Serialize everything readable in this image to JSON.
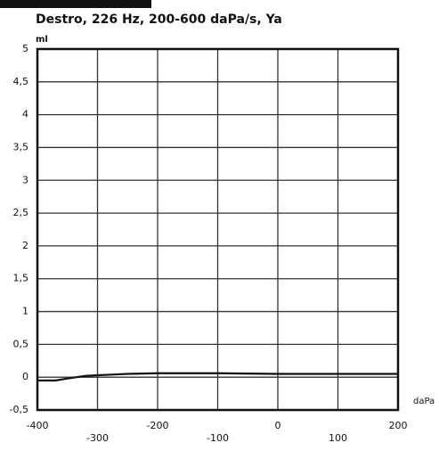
{
  "chart_data": {
    "type": "line",
    "title": "Destro, 226 Hz, 200-600 daPa/s, Ya",
    "y_label": "ml",
    "x_label": "daPa",
    "x": [
      -400,
      -370,
      -350,
      -320,
      -300,
      -250,
      -200,
      -100,
      0,
      100,
      200
    ],
    "series": [
      {
        "name": null,
        "color": "#111111",
        "values": [
          -0.05,
          -0.05,
          -0.02,
          0.02,
          0.03,
          0.05,
          0.06,
          0.06,
          0.05,
          0.05,
          0.05
        ]
      }
    ],
    "xlim": [
      -400,
      200
    ],
    "xticks": [
      -400,
      -300,
      -200,
      -100,
      0,
      100,
      200
    ],
    "ylim": [
      -0.5,
      5
    ],
    "yticks": [
      {
        "value": -0.5,
        "label": "-0,5"
      },
      0,
      {
        "value": 0.5,
        "label": "0,5"
      },
      1,
      {
        "value": 1.5,
        "label": "1,5"
      },
      2,
      {
        "value": 2.5,
        "label": "2,5"
      },
      3,
      {
        "value": 3.5,
        "label": "3,5"
      },
      4,
      {
        "value": 4.5,
        "label": "4,5"
      },
      5
    ],
    "grid": true
  }
}
